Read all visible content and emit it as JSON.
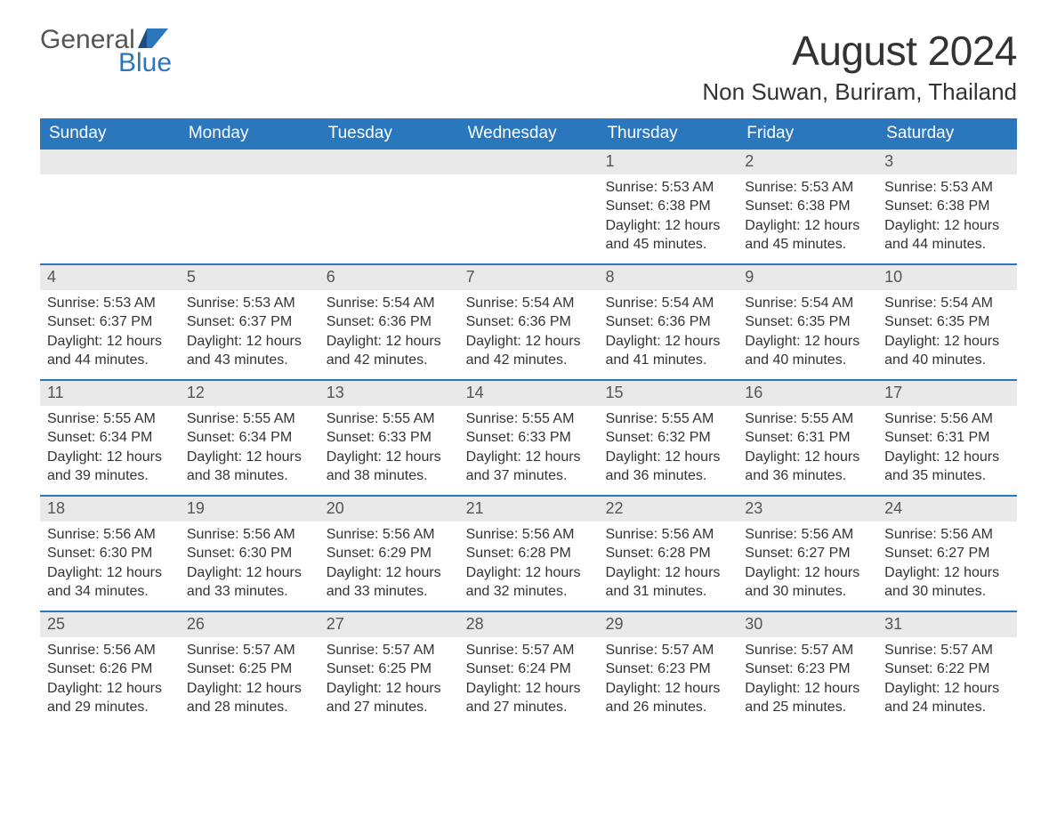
{
  "logo": {
    "word1": "General",
    "word2": "Blue"
  },
  "title": "August 2024",
  "location": "Non Suwan, Buriram, Thailand",
  "colors": {
    "header_bg": "#2a77bd",
    "daynum_bg": "#e9e9e9",
    "week_divider": "#2a77bd",
    "text": "#333333",
    "logo_grey": "#555555",
    "logo_blue": "#2a77bd",
    "background": "#ffffff"
  },
  "fonts": {
    "title_size_pt": 34,
    "location_size_pt": 20,
    "header_size_pt": 14,
    "daynum_size_pt": 14,
    "body_size_pt": 12
  },
  "dayNames": [
    "Sunday",
    "Monday",
    "Tuesday",
    "Wednesday",
    "Thursday",
    "Friday",
    "Saturday"
  ],
  "weeks": [
    [
      null,
      null,
      null,
      null,
      {
        "n": "1",
        "sunrise": "5:53 AM",
        "sunset": "6:38 PM",
        "daylight": "12 hours and 45 minutes."
      },
      {
        "n": "2",
        "sunrise": "5:53 AM",
        "sunset": "6:38 PM",
        "daylight": "12 hours and 45 minutes."
      },
      {
        "n": "3",
        "sunrise": "5:53 AM",
        "sunset": "6:38 PM",
        "daylight": "12 hours and 44 minutes."
      }
    ],
    [
      {
        "n": "4",
        "sunrise": "5:53 AM",
        "sunset": "6:37 PM",
        "daylight": "12 hours and 44 minutes."
      },
      {
        "n": "5",
        "sunrise": "5:53 AM",
        "sunset": "6:37 PM",
        "daylight": "12 hours and 43 minutes."
      },
      {
        "n": "6",
        "sunrise": "5:54 AM",
        "sunset": "6:36 PM",
        "daylight": "12 hours and 42 minutes."
      },
      {
        "n": "7",
        "sunrise": "5:54 AM",
        "sunset": "6:36 PM",
        "daylight": "12 hours and 42 minutes."
      },
      {
        "n": "8",
        "sunrise": "5:54 AM",
        "sunset": "6:36 PM",
        "daylight": "12 hours and 41 minutes."
      },
      {
        "n": "9",
        "sunrise": "5:54 AM",
        "sunset": "6:35 PM",
        "daylight": "12 hours and 40 minutes."
      },
      {
        "n": "10",
        "sunrise": "5:54 AM",
        "sunset": "6:35 PM",
        "daylight": "12 hours and 40 minutes."
      }
    ],
    [
      {
        "n": "11",
        "sunrise": "5:55 AM",
        "sunset": "6:34 PM",
        "daylight": "12 hours and 39 minutes."
      },
      {
        "n": "12",
        "sunrise": "5:55 AM",
        "sunset": "6:34 PM",
        "daylight": "12 hours and 38 minutes."
      },
      {
        "n": "13",
        "sunrise": "5:55 AM",
        "sunset": "6:33 PM",
        "daylight": "12 hours and 38 minutes."
      },
      {
        "n": "14",
        "sunrise": "5:55 AM",
        "sunset": "6:33 PM",
        "daylight": "12 hours and 37 minutes."
      },
      {
        "n": "15",
        "sunrise": "5:55 AM",
        "sunset": "6:32 PM",
        "daylight": "12 hours and 36 minutes."
      },
      {
        "n": "16",
        "sunrise": "5:55 AM",
        "sunset": "6:31 PM",
        "daylight": "12 hours and 36 minutes."
      },
      {
        "n": "17",
        "sunrise": "5:56 AM",
        "sunset": "6:31 PM",
        "daylight": "12 hours and 35 minutes."
      }
    ],
    [
      {
        "n": "18",
        "sunrise": "5:56 AM",
        "sunset": "6:30 PM",
        "daylight": "12 hours and 34 minutes."
      },
      {
        "n": "19",
        "sunrise": "5:56 AM",
        "sunset": "6:30 PM",
        "daylight": "12 hours and 33 minutes."
      },
      {
        "n": "20",
        "sunrise": "5:56 AM",
        "sunset": "6:29 PM",
        "daylight": "12 hours and 33 minutes."
      },
      {
        "n": "21",
        "sunrise": "5:56 AM",
        "sunset": "6:28 PM",
        "daylight": "12 hours and 32 minutes."
      },
      {
        "n": "22",
        "sunrise": "5:56 AM",
        "sunset": "6:28 PM",
        "daylight": "12 hours and 31 minutes."
      },
      {
        "n": "23",
        "sunrise": "5:56 AM",
        "sunset": "6:27 PM",
        "daylight": "12 hours and 30 minutes."
      },
      {
        "n": "24",
        "sunrise": "5:56 AM",
        "sunset": "6:27 PM",
        "daylight": "12 hours and 30 minutes."
      }
    ],
    [
      {
        "n": "25",
        "sunrise": "5:56 AM",
        "sunset": "6:26 PM",
        "daylight": "12 hours and 29 minutes."
      },
      {
        "n": "26",
        "sunrise": "5:57 AM",
        "sunset": "6:25 PM",
        "daylight": "12 hours and 28 minutes."
      },
      {
        "n": "27",
        "sunrise": "5:57 AM",
        "sunset": "6:25 PM",
        "daylight": "12 hours and 27 minutes."
      },
      {
        "n": "28",
        "sunrise": "5:57 AM",
        "sunset": "6:24 PM",
        "daylight": "12 hours and 27 minutes."
      },
      {
        "n": "29",
        "sunrise": "5:57 AM",
        "sunset": "6:23 PM",
        "daylight": "12 hours and 26 minutes."
      },
      {
        "n": "30",
        "sunrise": "5:57 AM",
        "sunset": "6:23 PM",
        "daylight": "12 hours and 25 minutes."
      },
      {
        "n": "31",
        "sunrise": "5:57 AM",
        "sunset": "6:22 PM",
        "daylight": "12 hours and 24 minutes."
      }
    ]
  ],
  "labels": {
    "sunrise": "Sunrise: ",
    "sunset": "Sunset: ",
    "daylight": "Daylight: "
  }
}
